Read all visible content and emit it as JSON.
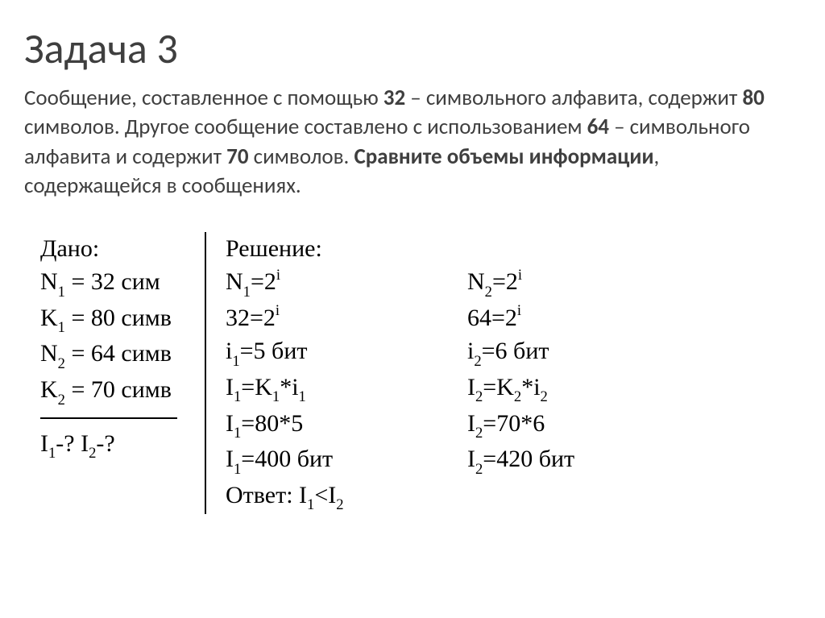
{
  "title": "Задача 3",
  "problem": {
    "p1a": "Сообщение, составленное с помощью ",
    "p1b": "32",
    "p1c": " – символьного алфавита, содержит ",
    "p1d": "80",
    "p1e": " символов. Другое сообщение составлено с использованием ",
    "p1f": "64",
    "p1g": " – символьного алфавита и содержит ",
    "p1h": "70",
    "p1i": " символов. ",
    "p1j": "Сравните объемы информации",
    "p1k": ", содержащейся в сообщениях."
  },
  "given": {
    "header": "Дано:",
    "n1_label": "N",
    "n1_sub": "1",
    "n1_eq": " = 32 сим",
    "k1_label": "K",
    "k1_sub": "1",
    "k1_eq": " = 80 симв",
    "n2_label": "N",
    "n2_sub": "2",
    "n2_eq": " = 64 симв",
    "k2_label": "K",
    "k2_sub": "2",
    "k2_eq": " = 70 симв",
    "find_i1": "I",
    "find_i1_sub": "1",
    "find_q1": "-? ",
    "find_i2": "I",
    "find_i2_sub": "2",
    "find_q2": "-?"
  },
  "solution": {
    "header": "Решение:",
    "col1": {
      "r1a": "N",
      "r1b": "1",
      "r1c": "=2",
      "r1d": "i",
      "r2a": "32=2",
      "r2b": "i",
      "r3a": "i",
      "r3b": "1",
      "r3c": "=5 бит",
      "r4a": "I",
      "r4b": "1",
      "r4c": "=K",
      "r4d": "1",
      "r4e": "*i",
      "r4f": "1",
      "r5a": "I",
      "r5b": "1",
      "r5c": "=80*5",
      "r6a": "I",
      "r6b": "1",
      "r6c": "=400 бит"
    },
    "col2": {
      "r1a": "N",
      "r1b": "2",
      "r1c": "=2",
      "r1d": "i",
      "r2a": "64=2",
      "r2b": "i",
      "r3pre": " ",
      "r3a": "i",
      "r3b": "2",
      "r3c": "=6 бит",
      "r4a": "I",
      "r4b": "2",
      "r4c": "=K",
      "r4d": "2",
      "r4e": "*i",
      "r4f": "2",
      "r5pre": " ",
      "r5a": "I",
      "r5b": "2",
      "r5c": "=70*6",
      "r6a": "I",
      "r6b": "2",
      "r6c": "=420 бит"
    },
    "answer": {
      "label": "Ответ: ",
      "a1": "I",
      "a1s": "1",
      "lt": "<",
      "a2": "I",
      "a2s": "2"
    }
  }
}
